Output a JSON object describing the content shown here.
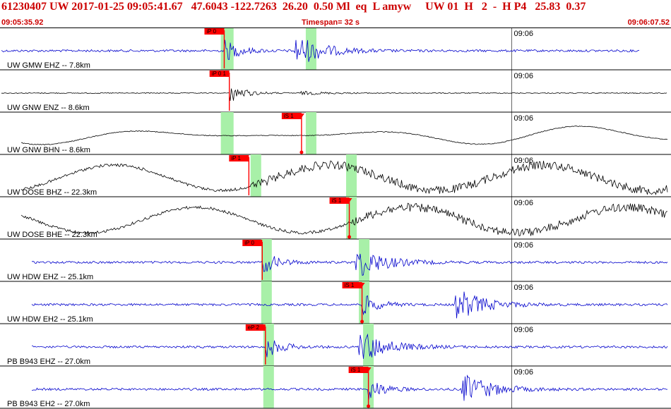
{
  "header": {
    "summary": "61230407 UW 2017-01-25 09:05:41.67   47.6043 -122.7263  26.20  0.50 Ml  eq  L amyw     UW 01  H   2  -  H P4   25.83  0.37",
    "start_time": "09:05:35.92",
    "timespan": "Timespan=  32 s",
    "end_time": "09:06:07.52"
  },
  "colors": {
    "header_text": "#cc0000",
    "trace_blue": "#0000cc",
    "trace_black": "#000000",
    "pick_flag": "#ff0000",
    "window_green": "#a8f0a8",
    "divider": "#000000"
  },
  "channels": [
    {
      "label": "UW GMW EHZ -- 7.8km",
      "tick": "09:06",
      "color": "blue",
      "style": "hf",
      "picks": [
        {
          "label": "iP 0",
          "t": 10.56,
          "align": "left"
        }
      ],
      "windows": [
        [
          10.4,
          11.0
        ],
        [
          14.4,
          14.9
        ]
      ]
    },
    {
      "label": "UW GNW ENZ -- 8.6km",
      "tick": "09:06",
      "color": "black",
      "style": "hf_small",
      "picks": [
        {
          "label": "iP 0 1",
          "t": 10.8,
          "align": "left"
        }
      ],
      "windows": []
    },
    {
      "label": "UW GNW BHN -- 8.6km",
      "tick": "09:06",
      "color": "black",
      "style": "lf",
      "picks": [
        {
          "label": "iS 1",
          "t": 14.2,
          "align": "right"
        }
      ],
      "windows": [
        [
          10.4,
          11.0
        ],
        [
          14.4,
          14.9
        ]
      ]
    },
    {
      "label": "UW DOSE BHZ -- 22.3km",
      "tick": "09:06",
      "color": "black",
      "style": "lf_noisy",
      "picks": [
        {
          "label": "iP 1",
          "t": 11.72,
          "align": "left"
        }
      ],
      "windows": [
        [
          11.8,
          12.3
        ],
        [
          16.3,
          16.8
        ]
      ]
    },
    {
      "label": "UW DOSE BHE -- 22.3km",
      "tick": "09:06",
      "color": "black",
      "style": "lf_noisy",
      "picks": [
        {
          "label": "iS 1",
          "t": 16.45,
          "align": "right"
        }
      ],
      "windows": [
        [
          16.3,
          16.8
        ]
      ]
    },
    {
      "label": "UW HDW EHZ -- 25.1km",
      "tick": "09:06",
      "color": "blue",
      "style": "hf",
      "picks": [
        {
          "label": "iP 0",
          "t": 12.35,
          "align": "left"
        }
      ],
      "windows": [
        [
          12.3,
          12.8
        ],
        [
          16.9,
          17.4
        ]
      ]
    },
    {
      "label": "UW HDW EH2 -- 25.1km",
      "tick": "09:06",
      "color": "blue",
      "style": "hf",
      "picks": [
        {
          "label": "iS 1",
          "t": 17.05,
          "align": "right"
        }
      ],
      "windows": [
        [
          12.3,
          12.8
        ],
        [
          16.9,
          17.4
        ]
      ]
    },
    {
      "label": "PB B943 EHZ -- 27.0km",
      "tick": "09:06",
      "color": "blue",
      "style": "hf",
      "picks": [
        {
          "label": "eP 2",
          "t": 12.5,
          "align": "left"
        }
      ],
      "windows": [
        [
          12.4,
          12.9
        ],
        [
          17.1,
          17.6
        ]
      ]
    },
    {
      "label": "PB B943 EH2 -- 27.0km",
      "tick": "09:06",
      "color": "blue",
      "style": "hf",
      "picks": [
        {
          "label": "iS 1",
          "t": 17.35,
          "align": "right"
        }
      ],
      "windows": [
        [
          12.4,
          12.9
        ],
        [
          17.1,
          17.6
        ]
      ]
    }
  ]
}
